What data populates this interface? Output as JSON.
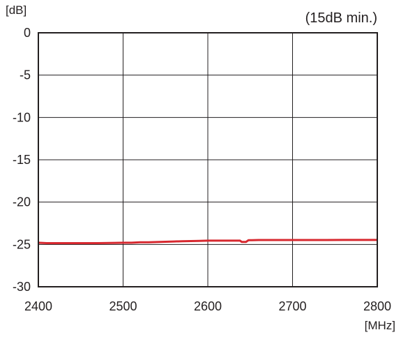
{
  "chart_data": {
    "type": "line",
    "title": "",
    "note": "(15dB min.)",
    "xlabel": "[MHz]",
    "ylabel": "[dB]",
    "xlim": [
      2400,
      2800
    ],
    "ylim": [
      -30,
      0
    ],
    "x_ticks": [
      2400,
      2500,
      2600,
      2700,
      2800
    ],
    "y_ticks": [
      0,
      -5,
      -10,
      -15,
      -20,
      -25,
      -30
    ],
    "grid": true,
    "series_color": "#d7282f",
    "axis_color": "#231f20",
    "series": [
      {
        "x": [
          2400,
          2410,
          2430,
          2450,
          2470,
          2490,
          2500,
          2510,
          2520,
          2530,
          2540,
          2550,
          2560,
          2570,
          2580,
          2590,
          2600,
          2610,
          2620,
          2630,
          2638,
          2640,
          2645,
          2648,
          2652,
          2660,
          2680,
          2700,
          2720,
          2740,
          2760,
          2780,
          2800
        ],
        "values": [
          -24.8,
          -24.85,
          -24.85,
          -24.85,
          -24.85,
          -24.82,
          -24.8,
          -24.8,
          -24.75,
          -24.75,
          -24.72,
          -24.68,
          -24.65,
          -24.62,
          -24.6,
          -24.58,
          -24.55,
          -24.55,
          -24.55,
          -24.55,
          -24.55,
          -24.7,
          -24.7,
          -24.5,
          -24.5,
          -24.48,
          -24.48,
          -24.48,
          -24.48,
          -24.48,
          -24.47,
          -24.47,
          -24.47
        ]
      }
    ]
  }
}
